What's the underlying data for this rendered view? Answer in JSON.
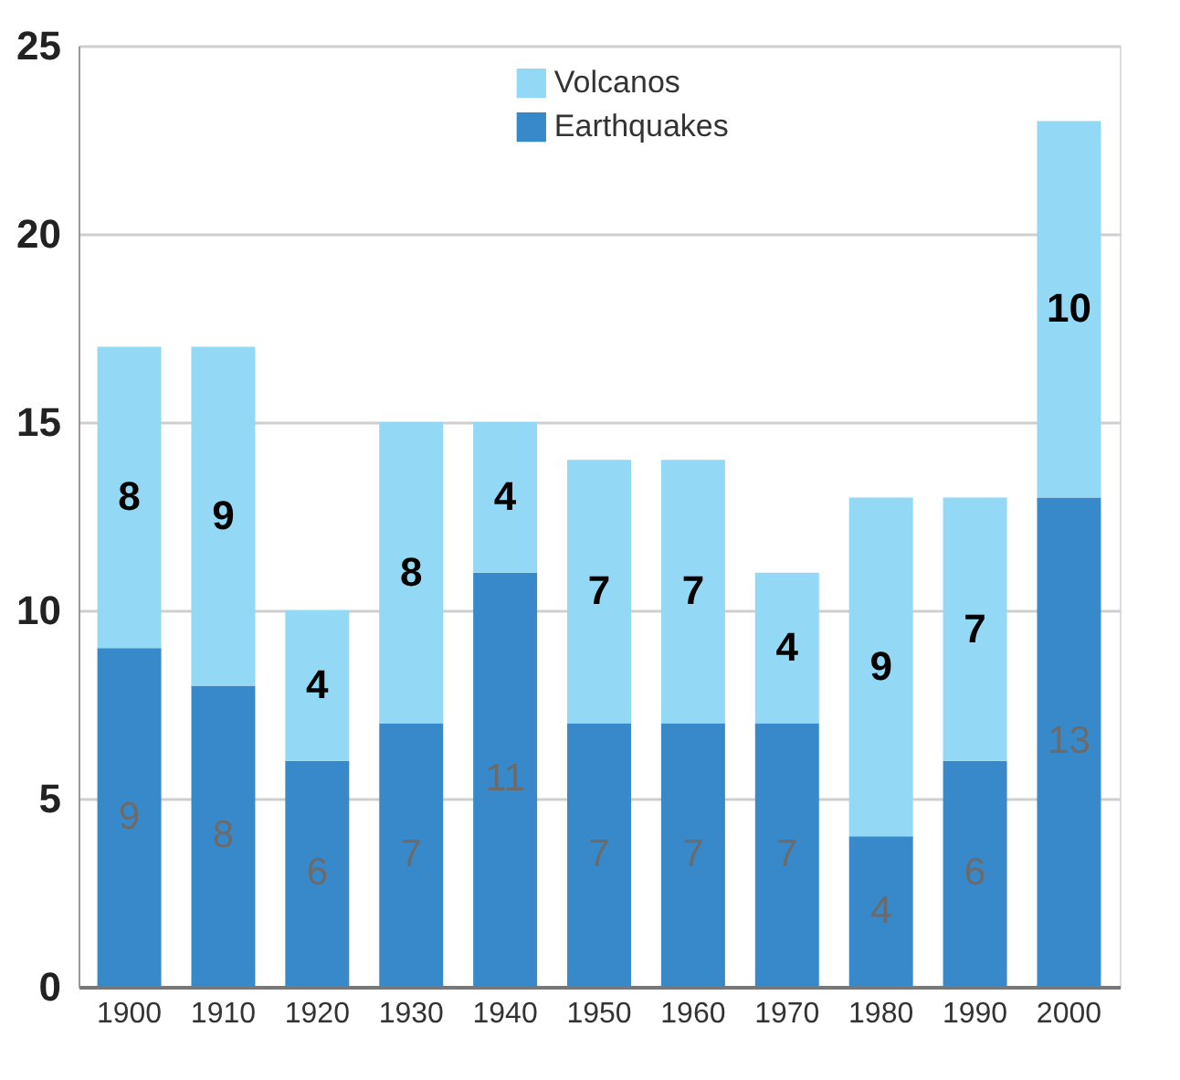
{
  "chart_data": {
    "type": "bar",
    "stacked": true,
    "categories": [
      "1900",
      "1910",
      "1920",
      "1930",
      "1940",
      "1950",
      "1960",
      "1970",
      "1980",
      "1990",
      "2000"
    ],
    "series": [
      {
        "name": "Earthquakes",
        "color": "#3889c9",
        "values": [
          9,
          8,
          6,
          7,
          11,
          7,
          7,
          7,
          4,
          6,
          13
        ]
      },
      {
        "name": "Volcanos",
        "color": "#93d8f5",
        "values": [
          8,
          9,
          4,
          8,
          4,
          7,
          7,
          4,
          9,
          7,
          10
        ]
      }
    ],
    "ylim": [
      0,
      25
    ],
    "yticks": [
      0,
      5,
      10,
      15,
      20,
      25
    ],
    "grid": "y",
    "legend": "top",
    "data_labels": true
  }
}
